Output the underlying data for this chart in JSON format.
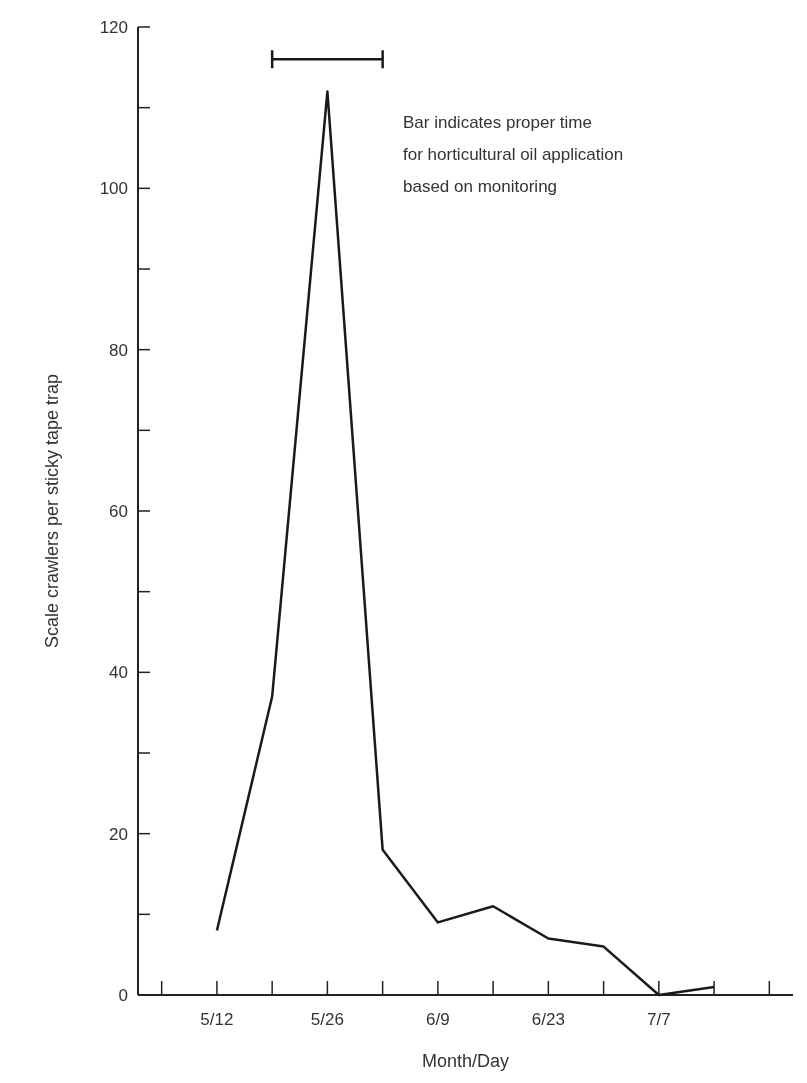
{
  "chart_data": {
    "type": "line",
    "xlabel": "Month/Day",
    "ylabel": "Scale crawlers per sticky tape trap",
    "series": [
      {
        "color": "#1a1a1a",
        "x": [
          "--05-12",
          "--05-19",
          "--05-26",
          "--06-02",
          "--06-09",
          "--06-16",
          "--06-23",
          "--06-30",
          "--07-07",
          "--07-14"
        ],
        "values": [
          8,
          37,
          112,
          18,
          9,
          11,
          7,
          6,
          0,
          1
        ]
      },
      {
        "color": "#1a1a1a",
        "x": [
          "--05-19",
          "--06-02"
        ],
        "values": [
          116,
          116
        ]
      }
    ],
    "marker": "none",
    "line_style": "solid",
    "xlim": [
      "--05-02",
      "--07-24"
    ],
    "xticks": [
      {
        "value": "--05-05",
        "label": null
      },
      {
        "value": "--05-12",
        "label": "5/12"
      },
      {
        "value": "--05-19",
        "label": null
      },
      {
        "value": "--05-26",
        "label": "5/26"
      },
      {
        "value": "--06-02",
        "label": null
      },
      {
        "value": "--06-09",
        "label": "6/9"
      },
      {
        "value": "--06-16",
        "label": null
      },
      {
        "value": "--06-23",
        "label": "6/23"
      },
      {
        "value": "--06-30",
        "label": null
      },
      {
        "value": "--07-07",
        "label": "7/7"
      },
      {
        "value": "--07-14",
        "label": null
      },
      {
        "value": "--07-21",
        "label": null
      }
    ],
    "ylim": [
      0,
      120
    ],
    "yticks": [
      0,
      {
        "value": 10,
        "label": null
      },
      20,
      {
        "value": 30,
        "label": null
      },
      40,
      {
        "value": 50,
        "label": null
      },
      60,
      {
        "value": 70,
        "label": null
      },
      80,
      {
        "value": 90,
        "label": null
      },
      100,
      {
        "value": 110,
        "label": null
      },
      120
    ],
    "annotations": [
      "Bar indicates proper time\nfor horticultural oil application\nbased on monitoring"
    ],
    "grid": false
  }
}
